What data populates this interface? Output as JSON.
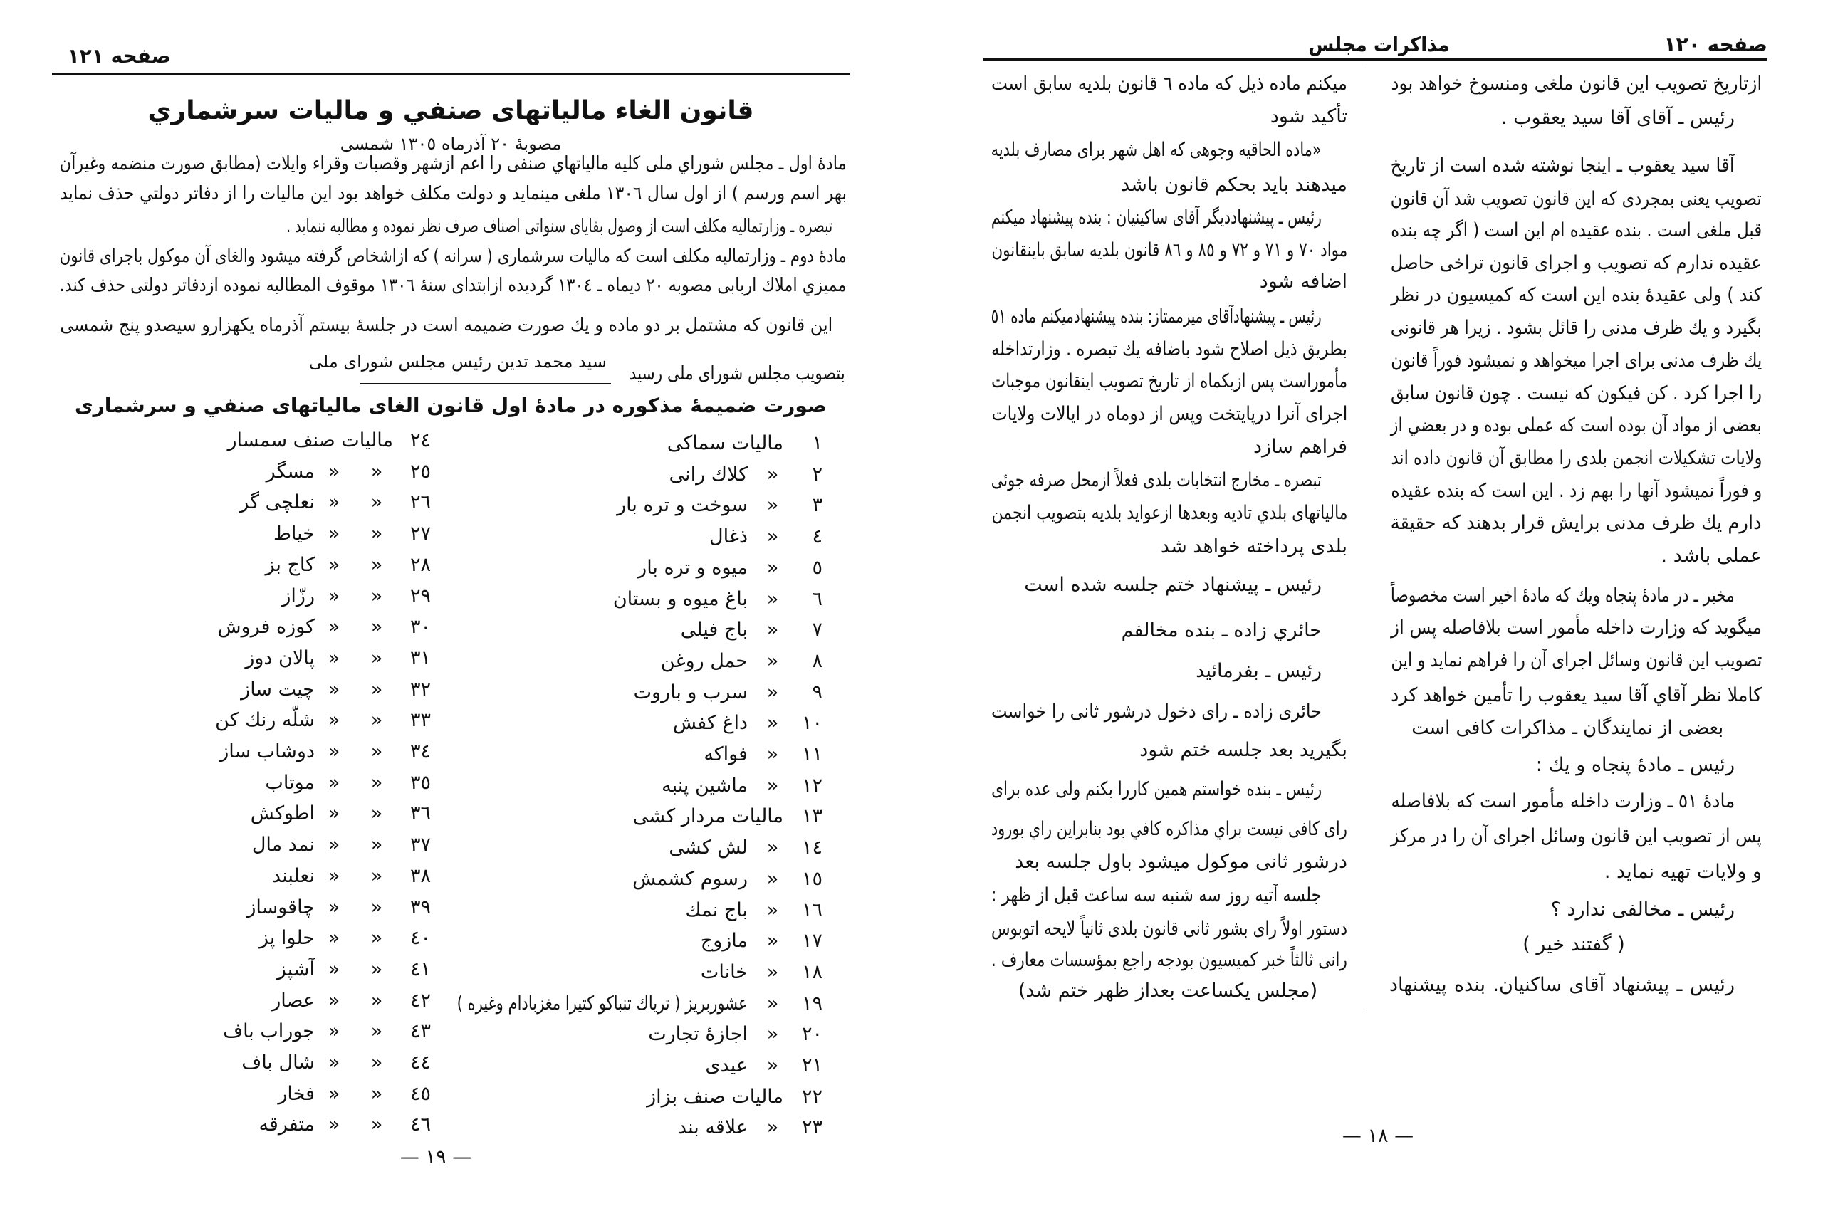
{
  "ditto_mark": "«",
  "left_page": {
    "page_label": "صفحه ١٢١",
    "title": "قانون الغاء مالیاتهای صنفي و مالیات سرشماري",
    "subtitle": "مصوبهٔ ٢٠ آذرماه ١٣٠٥ شمسی",
    "paragraphs": [
      "مادهٔ اول ـ مجلس شوراي ملی کلیه مالیاتهاي صنفی را اعم ازشهر وقصبات وقراء وایلات (مطابق صورت منضمه وغیرآن",
      "بهر اسم ورسم ) از اول سال ١٣٠٦ ملغی مینماید و دولت مکلف خواهد بود این مالیات را از دفاتر دولتي حذف نماید",
      "تبصره ـ وزارتمالیه مکلف است از وصول بقایای سنواتی اصناف صرف نظر نموده و مطالبه ننماید .",
      "مادهٔ دوم ـ وزارتمالیه مکلف است که مالیات سرشماری ( سرانه ) که ازاشخاص گرفته میشود والغای آن موکول باجرای قانون",
      "ممیزي املاك اربابی مصوبه ٢٠ دیماه ـ ١٣٠٤ گردیده ازابتدای سنهٔ ١٣٠٦ موقوف المطالبه نموده ازدفاتر دولتی حذف کند.",
      "این قانون که مشتمل بر دو ماده و یك صورت ضمیمه است در جلسهٔ بیستم آذرماه یکهزارو سیصدو پنج شمسی"
    ],
    "approval_line": "بتصویب مجلس شورای ملی رسید",
    "signature": "سید محمد تدین رئیس مجلس شورای ملی",
    "annex_heading": "صورت ضمیمهٔ مذکوره در مادهٔ اول قانون الغای مالیاتهای صنفي و سرشماری",
    "annex_items": [
      {
        "number": "١",
        "name": "مالیات سماکی",
        "ditto": 0
      },
      {
        "number": "٢",
        "name": "کلاك رانی",
        "ditto": 1
      },
      {
        "number": "٣",
        "name": "سوخت و تره بار",
        "ditto": 1
      },
      {
        "number": "٤",
        "name": "ذغال",
        "ditto": 1
      },
      {
        "number": "٥",
        "name": "میوه و تره بار",
        "ditto": 1
      },
      {
        "number": "٦",
        "name": "باغ میوه و بستان",
        "ditto": 1
      },
      {
        "number": "٧",
        "name": "باج فیلی",
        "ditto": 1
      },
      {
        "number": "٨",
        "name": "حمل روغن",
        "ditto": 1
      },
      {
        "number": "٩",
        "name": "سرب و باروت",
        "ditto": 1
      },
      {
        "number": "١٠",
        "name": "داغ کفش",
        "ditto": 1
      },
      {
        "number": "١١",
        "name": "فواکه",
        "ditto": 1
      },
      {
        "number": "١٢",
        "name": "ماشین پنبه",
        "ditto": 1
      },
      {
        "number": "١٣",
        "name": "مالیات مردار کشی",
        "ditto": 0
      },
      {
        "number": "١٤",
        "name": "لش کشی",
        "ditto": 1
      },
      {
        "number": "١٥",
        "name": "رسوم کشمش",
        "ditto": 1
      },
      {
        "number": "١٦",
        "name": "باج نمك",
        "ditto": 1
      },
      {
        "number": "١٧",
        "name": "مازوج",
        "ditto": 1
      },
      {
        "number": "١٨",
        "name": "خانات",
        "ditto": 1
      },
      {
        "number": "١٩",
        "name": "عشوربریز ( تریاك تنباکو کتیرا مغزبادام وغیره )",
        "ditto": 1
      },
      {
        "number": "٢٠",
        "name": "اجازهٔ تجارت",
        "ditto": 1
      },
      {
        "number": "٢١",
        "name": "عیدی",
        "ditto": 1
      },
      {
        "number": "٢٢",
        "name": "مالیات صنف بزاز",
        "ditto": 0
      },
      {
        "number": "٢٣",
        "name": "علاقه بند",
        "ditto": 1
      },
      {
        "number": "٢٤",
        "name": "مالیات صنف سمسار",
        "ditto": 0
      },
      {
        "number": "٢٥",
        "name": "مسگر",
        "ditto": 2
      },
      {
        "number": "٢٦",
        "name": "نعلچی گر",
        "ditto": 2
      },
      {
        "number": "٢٧",
        "name": "خیاط",
        "ditto": 2
      },
      {
        "number": "٢٨",
        "name": "کاج بز",
        "ditto": 2
      },
      {
        "number": "٢٩",
        "name": "رزّاز",
        "ditto": 2
      },
      {
        "number": "٣٠",
        "name": "کوزه فروش",
        "ditto": 2
      },
      {
        "number": "٣١",
        "name": "پالان دوز",
        "ditto": 2
      },
      {
        "number": "٣٢",
        "name": "چیت ساز",
        "ditto": 2
      },
      {
        "number": "٣٣",
        "name": "شلّه رنك کن",
        "ditto": 2
      },
      {
        "number": "٣٤",
        "name": "دوشاب ساز",
        "ditto": 2
      },
      {
        "number": "٣٥",
        "name": "موتاب",
        "ditto": 2
      },
      {
        "number": "٣٦",
        "name": "اطوکش",
        "ditto": 2
      },
      {
        "number": "٣٧",
        "name": "نمد مال",
        "ditto": 2
      },
      {
        "number": "٣٨",
        "name": "نعلبند",
        "ditto": 2
      },
      {
        "number": "٣٩",
        "name": "چاقوساز",
        "ditto": 2
      },
      {
        "number": "٤٠",
        "name": "حلوا پز",
        "ditto": 2
      },
      {
        "number": "٤١",
        "name": "آشپز",
        "ditto": 2
      },
      {
        "number": "٤٢",
        "name": "عصار",
        "ditto": 2
      },
      {
        "number": "٤٣",
        "name": "جوراب باف",
        "ditto": 2
      },
      {
        "number": "٤٤",
        "name": "شال باف",
        "ditto": 2
      },
      {
        "number": "٤٥",
        "name": "فخار",
        "ditto": 2
      },
      {
        "number": "٤٦",
        "name": "متفرقه",
        "ditto": 2
      }
    ],
    "page_number": "— ١٩ —"
  },
  "right_page": {
    "page_label": "صفحه ١٢٠",
    "running_head": "مذاکرات مجلس",
    "right_column": [
      "ازتاریخ تصویب این قانون ملغی ومنسوخ خواهد بود",
      "رئیس ـ آقای آقا سید یعقوب .",
      "آقا سید یعقوب ـ اینجا نوشته شده است از تاریخ",
      "تصویب یعنی بمجردی که این قانون تصویب شد آن قانون",
      "قبل ملغی است . بنده عقیده ام این است ( اگر چه بنده",
      "عقیده ندارم که تصویب و اجرای قانون تراخی حاصل",
      "کند ) ولی عقیدهٔ بنده این است که کمیسیون در نظر",
      "بگیرد و یك ظرف مدنی را قائل بشود . زیرا هر قانونی",
      "یك ظرف مدنی برای اجرا میخواهد و نمیشود فوراً قانون",
      "را اجرا کرد . کن فیکون که نیست . چون قانون سابق",
      "بعضی از مواد آن بوده است که عملی بوده و در بعضي از",
      "ولایات تشکیلات انجمن بلدی را مطابق آن قانون داده اند",
      "و فوراً نمیشود آنها را بهم زد . این است که بنده عقیده",
      "دارم یك ظرف مدنی برایش قرار بدهند که حقیقة",
      "عملی باشد .",
      "مخبر ـ در مادهٔ پنجاه ویك که مادهٔ اخیر است مخصوصاً",
      "میگوید که وزارت داخله مأمور است بلافاصله پس از",
      "تصویب این قانون وسائل اجرای آن را فراهم نماید و این",
      "کاملا نظر آقاي آقا سید یعقوب را تأمین خواهد کرد",
      "بعضی از نمایندگان ـ مذاکرات کافی است",
      "رئیس ـ مادهٔ پنجاه و یك :",
      "مادهٔ ٥١ ـ وزارت داخله مأمور است که بلافاصله",
      "پس از تصویب این قانون وسائل اجرای آن را در مرکز",
      "و ولایات تهیه نماید .",
      "رئیس ـ مخالفی ندارد ؟",
      "( گفتند خیر )",
      "رئیس ـ پیشنهاد آقای ساکنیان. بنده پیشنهاد"
    ],
    "left_column": [
      "میکنم ماده ذیل که ماده ٦ قانون بلدیه سابق است",
      "تأکید شود",
      "«ماده الحاقیه وجوهی که اهل شهر برای مصارف بلدیه",
      "میدهند باید بحکم قانون باشد",
      "رئیس ـ پیشنهاددیگر آقای ساکینیان : بنده پیشنهاد میکنم",
      "مواد ٧٠ و ٧١ و ٧٢ و ٨٥ و ٨٦ قانون بلدیه سابق باینقانون",
      "اضافه شود",
      "رئیس ـ پیشنهادآقای میرممتاز: بنده پیشنهادمیکنم ماده ٥١",
      "بطریق ذیل اصلاح شود باضافه یك تبصره . وزارتداخله",
      "مأموراست پس ازیکماه از تاریخ تصویب اینقانون موجبات",
      "اجرای آنرا درپایتخت وپس از دوماه در ایالات ولایات",
      "فراهم سازد",
      "تبصره ـ مخارج انتخابات بلدی فعلاً ازمحل صرفه جوئی",
      "مالیاتهای بلدي تادیه وبعدها ازعواید بلدیه بتصویب انجمن",
      "بلدی پرداخته خواهد شد",
      "رئیس ـ پیشنهاد ختم جلسه شده است",
      "حائري زاده ـ بنده مخالفم",
      "رئیس ـ بفرمائید",
      "حائری زاده ـ رای دخول درشور ثانی را خواست",
      "بگیرید بعد جلسه ختم شود",
      "رئیس ـ بنده خواستم همین کاررا بکنم ولی عده برای",
      "رای کافی نیست براي مذاکره کافي بود بنابراین راي بورود",
      "درشور ثانی موکول میشود باول جلسه بعد",
      "جلسه آتیه روز سه شنبه سه ساعت قبل از ظهر :",
      "دستور اولاً رای بشور ثانی قانون بلدی ثانیاً لایحه اتوبوس",
      "رانی ثالثاً خبر کمیسیون بودجه راجع بمؤسسات معارف .",
      "(مجلس یکساعت بعداز ظهر ختم شد)"
    ],
    "page_number": "— ١٨ —"
  }
}
